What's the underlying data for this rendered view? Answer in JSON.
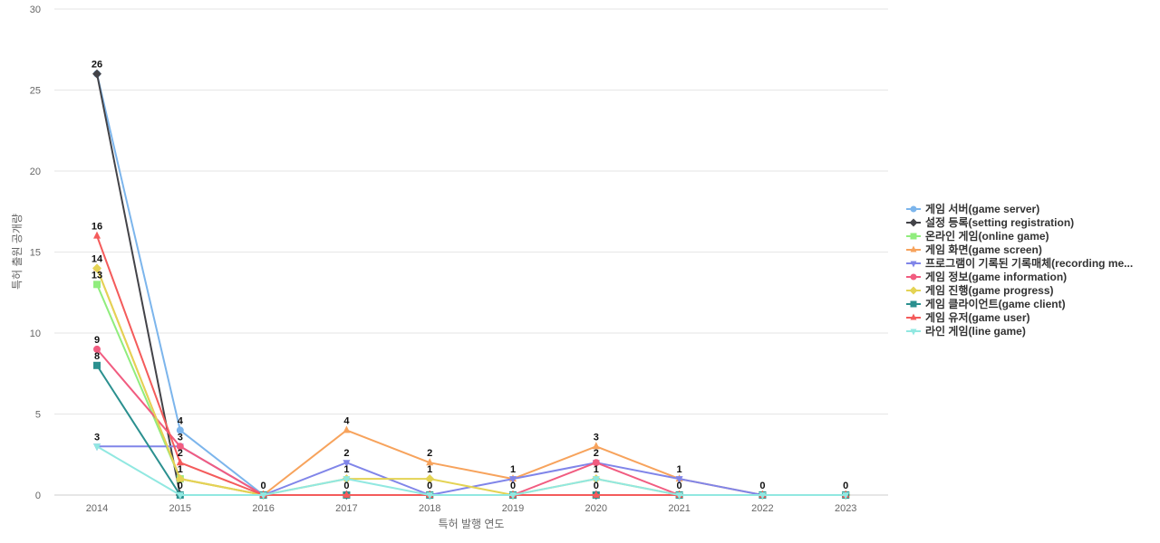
{
  "chart_data": {
    "type": "line",
    "title": "",
    "xlabel": "특허 발행 연도",
    "ylabel": "특허 출원 공개량",
    "x": [
      "2014",
      "2015",
      "2016",
      "2017",
      "2018",
      "2019",
      "2020",
      "2021",
      "2022",
      "2023"
    ],
    "ylim": [
      0,
      30
    ],
    "yticks": [
      0,
      5,
      10,
      15,
      20,
      25,
      30
    ],
    "grid": true,
    "legend_position": "right",
    "series": [
      {
        "name": "게임 서버(game server)",
        "color": "#7cb5ec",
        "marker": "circle",
        "values": [
          26,
          4,
          0,
          0,
          0,
          0,
          0,
          0,
          0,
          0
        ]
      },
      {
        "name": "설정 등록(setting registration)",
        "color": "#434348",
        "marker": "diamond",
        "values": [
          26,
          0,
          0,
          0,
          0,
          0,
          0,
          0,
          0,
          0
        ]
      },
      {
        "name": "온라인 게임(online game)",
        "color": "#90ed7d",
        "marker": "square",
        "values": [
          13,
          1,
          0,
          0,
          0,
          0,
          0,
          0,
          0,
          0
        ]
      },
      {
        "name": "게임 화면(game screen)",
        "color": "#f7a35c",
        "marker": "triangle",
        "values": [
          14,
          1,
          0,
          4,
          2,
          1,
          3,
          1,
          0,
          0
        ]
      },
      {
        "name": "프로그램이 기록된 기록매체(recording me...",
        "color": "#8085e9",
        "marker": "triangle-down",
        "values": [
          3,
          3,
          0,
          2,
          0,
          1,
          2,
          1,
          0,
          0
        ]
      },
      {
        "name": "게임 정보(game information)",
        "color": "#f15c80",
        "marker": "circle",
        "values": [
          9,
          3,
          0,
          0,
          0,
          0,
          2,
          0,
          0,
          0
        ]
      },
      {
        "name": "게임 진행(game progress)",
        "color": "#e4d354",
        "marker": "diamond",
        "values": [
          14,
          1,
          0,
          1,
          1,
          0,
          1,
          0,
          0,
          0
        ]
      },
      {
        "name": "게임 클라이언트(game client)",
        "color": "#2b908f",
        "marker": "square",
        "values": [
          8,
          0,
          0,
          0,
          0,
          0,
          0,
          0,
          0,
          0
        ]
      },
      {
        "name": "게임 유저(game user)",
        "color": "#f45b5b",
        "marker": "triangle",
        "values": [
          16,
          2,
          0,
          0,
          0,
          0,
          0,
          0,
          0,
          0
        ]
      },
      {
        "name": "라인 게임(line game)",
        "color": "#91e8e1",
        "marker": "triangle-down",
        "values": [
          3,
          0,
          0,
          1,
          0,
          0,
          1,
          0,
          0,
          0
        ]
      }
    ],
    "data_labels": [
      {
        "x": "2014",
        "text": "26",
        "value": 26
      },
      {
        "x": "2014",
        "text": "16",
        "value": 16
      },
      {
        "x": "2014",
        "text": "14",
        "value": 14
      },
      {
        "x": "2014",
        "text": "13",
        "value": 13
      },
      {
        "x": "2014",
        "text": "9",
        "value": 9
      },
      {
        "x": "2014",
        "text": "8",
        "value": 8
      },
      {
        "x": "2014",
        "text": "3",
        "value": 3
      },
      {
        "x": "2015",
        "text": "4",
        "value": 4
      },
      {
        "x": "2015",
        "text": "3",
        "value": 3
      },
      {
        "x": "2015",
        "text": "2",
        "value": 2
      },
      {
        "x": "2015",
        "text": "1",
        "value": 1
      },
      {
        "x": "2015",
        "text": "0",
        "value": 0
      },
      {
        "x": "2016",
        "text": "0",
        "value": 0
      },
      {
        "x": "2017",
        "text": "4",
        "value": 4
      },
      {
        "x": "2017",
        "text": "2",
        "value": 2
      },
      {
        "x": "2017",
        "text": "1",
        "value": 1
      },
      {
        "x": "2017",
        "text": "0",
        "value": 0
      },
      {
        "x": "2018",
        "text": "2",
        "value": 2
      },
      {
        "x": "2018",
        "text": "1",
        "value": 1
      },
      {
        "x": "2018",
        "text": "0",
        "value": 0
      },
      {
        "x": "2019",
        "text": "1",
        "value": 1
      },
      {
        "x": "2019",
        "text": "0",
        "value": 0
      },
      {
        "x": "2020",
        "text": "3",
        "value": 3
      },
      {
        "x": "2020",
        "text": "2",
        "value": 2
      },
      {
        "x": "2020",
        "text": "1",
        "value": 1
      },
      {
        "x": "2020",
        "text": "0",
        "value": 0
      },
      {
        "x": "2021",
        "text": "1",
        "value": 1
      },
      {
        "x": "2021",
        "text": "0",
        "value": 0
      },
      {
        "x": "2022",
        "text": "0",
        "value": 0
      },
      {
        "x": "2023",
        "text": "0",
        "value": 0
      }
    ]
  }
}
